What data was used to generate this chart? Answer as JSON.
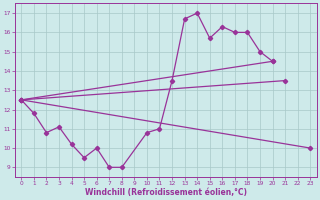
{
  "background_color": "#ceeaea",
  "grid_color": "#a8c8c8",
  "line_color": "#993399",
  "ylabel_values": [
    9,
    10,
    11,
    12,
    13,
    14,
    15,
    16,
    17
  ],
  "xlabel_values": [
    0,
    1,
    2,
    3,
    4,
    5,
    6,
    7,
    8,
    9,
    10,
    11,
    12,
    13,
    14,
    15,
    16,
    17,
    18,
    19,
    20,
    21,
    22,
    23
  ],
  "xlabel_label": "Windchill (Refroidissement éolien,°C)",
  "line1_y": [
    12.5,
    11.8,
    10.8,
    11.1,
    10.2,
    9.5,
    10.0,
    9.0,
    9.0,
    null,
    10.8,
    11.0,
    13.5,
    16.7,
    17.0,
    15.7,
    16.3,
    16.0,
    16.0,
    15.0,
    14.5,
    null,
    null,
    null
  ],
  "line2_x": [
    0,
    20
  ],
  "line2_y": [
    12.5,
    14.5
  ],
  "line3_x": [
    0,
    21
  ],
  "line3_y": [
    12.5,
    13.5
  ],
  "line4_x": [
    0,
    23
  ],
  "line4_y": [
    12.5,
    10.0
  ],
  "xlim": [
    -0.5,
    23.5
  ],
  "ylim": [
    8.5,
    17.5
  ]
}
